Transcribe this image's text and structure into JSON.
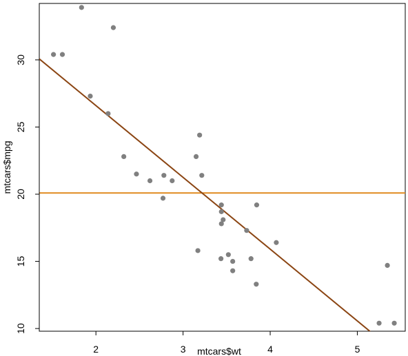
{
  "chart_data": {
    "type": "scatter",
    "title": "",
    "xlabel": "mtcars$wt",
    "ylabel": "mtcars$mpg",
    "xlim": [
      1.35,
      5.55
    ],
    "ylim": [
      9.8,
      34.2
    ],
    "xticks": [
      2,
      3,
      4,
      5
    ],
    "yticks": [
      10,
      15,
      20,
      25,
      30
    ],
    "grid": false,
    "point_color": "#808080",
    "points": [
      {
        "x": 1.513,
        "y": 30.4
      },
      {
        "x": 1.615,
        "y": 30.4
      },
      {
        "x": 1.835,
        "y": 33.9
      },
      {
        "x": 1.935,
        "y": 27.3
      },
      {
        "x": 2.14,
        "y": 26.0
      },
      {
        "x": 2.2,
        "y": 32.4
      },
      {
        "x": 2.32,
        "y": 22.8
      },
      {
        "x": 2.465,
        "y": 21.5
      },
      {
        "x": 2.62,
        "y": 21.0
      },
      {
        "x": 2.77,
        "y": 19.7
      },
      {
        "x": 2.78,
        "y": 21.4
      },
      {
        "x": 2.875,
        "y": 21.0
      },
      {
        "x": 3.15,
        "y": 22.8
      },
      {
        "x": 3.17,
        "y": 15.8
      },
      {
        "x": 3.19,
        "y": 24.4
      },
      {
        "x": 3.215,
        "y": 21.4
      },
      {
        "x": 3.435,
        "y": 15.2
      },
      {
        "x": 3.44,
        "y": 18.7
      },
      {
        "x": 3.44,
        "y": 17.8
      },
      {
        "x": 3.44,
        "y": 19.2
      },
      {
        "x": 3.46,
        "y": 18.1
      },
      {
        "x": 3.52,
        "y": 15.5
      },
      {
        "x": 3.57,
        "y": 15.0
      },
      {
        "x": 3.57,
        "y": 14.3
      },
      {
        "x": 3.73,
        "y": 17.3
      },
      {
        "x": 3.78,
        "y": 15.2
      },
      {
        "x": 3.84,
        "y": 13.3
      },
      {
        "x": 3.845,
        "y": 19.2
      },
      {
        "x": 4.07,
        "y": 16.4
      },
      {
        "x": 5.25,
        "y": 10.4
      },
      {
        "x": 5.345,
        "y": 14.7
      },
      {
        "x": 5.424,
        "y": 10.4
      }
    ],
    "lines": [
      {
        "kind": "mean",
        "y": 20.09,
        "color": "#e08a1e"
      },
      {
        "kind": "regression",
        "intercept": 37.285,
        "slope": -5.344,
        "color": "#8b4513"
      }
    ]
  }
}
